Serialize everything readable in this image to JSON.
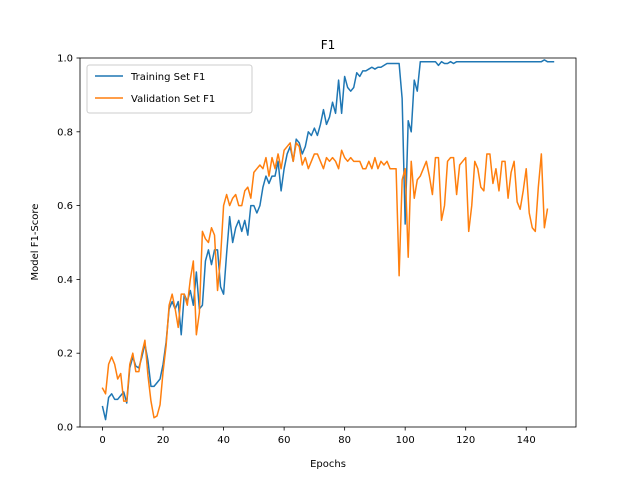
{
  "chart_data": {
    "type": "line",
    "title": "F1",
    "xlabel": "Epochs",
    "ylabel": "Model F1-Score",
    "xlim": [
      -7.45,
      156.45
    ],
    "ylim": [
      0.0,
      1.0
    ],
    "xticks": [
      0,
      20,
      40,
      60,
      80,
      100,
      120,
      140
    ],
    "yticks": [
      0.0,
      0.2,
      0.4,
      0.6,
      0.8,
      1.0
    ],
    "xtick_labels": [
      "0",
      "20",
      "40",
      "60",
      "80",
      "100",
      "120",
      "140"
    ],
    "ytick_labels": [
      "0.0",
      "0.2",
      "0.4",
      "0.6",
      "0.8",
      "1.0"
    ],
    "grid": false,
    "legend_position": "upper-left",
    "series": [
      {
        "name": "Training Set F1",
        "color": "#1f77b4",
        "values": [
          0.055,
          0.02,
          0.08,
          0.09,
          0.075,
          0.075,
          0.085,
          0.095,
          0.065,
          0.16,
          0.19,
          0.165,
          0.16,
          0.19,
          0.225,
          0.18,
          0.11,
          0.11,
          0.12,
          0.13,
          0.17,
          0.23,
          0.32,
          0.34,
          0.32,
          0.34,
          0.25,
          0.36,
          0.34,
          0.37,
          0.33,
          0.42,
          0.32,
          0.33,
          0.45,
          0.48,
          0.44,
          0.48,
          0.48,
          0.38,
          0.36,
          0.47,
          0.57,
          0.5,
          0.54,
          0.56,
          0.53,
          0.56,
          0.52,
          0.6,
          0.6,
          0.58,
          0.6,
          0.65,
          0.68,
          0.66,
          0.68,
          0.68,
          0.72,
          0.64,
          0.7,
          0.74,
          0.76,
          0.72,
          0.78,
          0.77,
          0.74,
          0.76,
          0.8,
          0.79,
          0.81,
          0.79,
          0.82,
          0.86,
          0.82,
          0.84,
          0.88,
          0.85,
          0.94,
          0.85,
          0.95,
          0.92,
          0.91,
          0.92,
          0.96,
          0.95,
          0.965,
          0.965,
          0.97,
          0.975,
          0.97,
          0.975,
          0.975,
          0.98,
          0.985,
          0.985,
          0.985,
          0.985,
          0.985,
          0.89,
          0.55,
          0.83,
          0.8,
          0.94,
          0.91,
          0.99,
          0.99,
          0.99,
          0.99,
          0.99,
          0.99,
          0.98,
          0.99,
          0.985,
          0.985,
          0.99,
          0.985,
          0.99,
          0.99,
          0.99,
          0.99,
          0.99,
          0.99,
          0.99,
          0.99,
          0.99,
          0.99,
          0.99,
          0.99,
          0.99,
          0.99,
          0.99,
          0.99,
          0.99,
          0.99,
          0.99,
          0.99,
          0.99,
          0.99,
          0.99,
          0.99,
          0.99,
          0.99,
          0.99,
          0.99,
          0.99,
          0.995,
          0.99,
          0.99,
          0.99
        ]
      },
      {
        "name": "Validation Set F1",
        "color": "#ff7f0e",
        "values": [
          0.105,
          0.09,
          0.17,
          0.19,
          0.17,
          0.13,
          0.145,
          0.07,
          0.07,
          0.17,
          0.2,
          0.15,
          0.15,
          0.2,
          0.235,
          0.14,
          0.07,
          0.025,
          0.03,
          0.06,
          0.15,
          0.22,
          0.33,
          0.36,
          0.32,
          0.27,
          0.36,
          0.36,
          0.33,
          0.4,
          0.45,
          0.25,
          0.31,
          0.53,
          0.51,
          0.5,
          0.54,
          0.52,
          0.37,
          0.46,
          0.6,
          0.63,
          0.6,
          0.62,
          0.63,
          0.6,
          0.6,
          0.64,
          0.65,
          0.62,
          0.69,
          0.7,
          0.71,
          0.7,
          0.73,
          0.68,
          0.73,
          0.7,
          0.74,
          0.7,
          0.75,
          0.76,
          0.77,
          0.72,
          0.77,
          0.76,
          0.71,
          0.73,
          0.7,
          0.72,
          0.74,
          0.74,
          0.72,
          0.7,
          0.73,
          0.72,
          0.73,
          0.72,
          0.7,
          0.75,
          0.73,
          0.72,
          0.73,
          0.72,
          0.72,
          0.72,
          0.7,
          0.7,
          0.72,
          0.7,
          0.73,
          0.7,
          0.72,
          0.71,
          0.72,
          0.7,
          0.7,
          0.7,
          0.41,
          0.67,
          0.7,
          0.46,
          0.72,
          0.62,
          0.67,
          0.68,
          0.7,
          0.72,
          0.68,
          0.63,
          0.73,
          0.73,
          0.56,
          0.6,
          0.72,
          0.73,
          0.73,
          0.63,
          0.71,
          0.72,
          0.73,
          0.53,
          0.6,
          0.72,
          0.7,
          0.65,
          0.64,
          0.74,
          0.74,
          0.66,
          0.7,
          0.64,
          0.72,
          0.72,
          0.62,
          0.69,
          0.72,
          0.61,
          0.59,
          0.64,
          0.7,
          0.58,
          0.54,
          0.53,
          0.65,
          0.74,
          0.54,
          0.59
        ]
      }
    ]
  }
}
